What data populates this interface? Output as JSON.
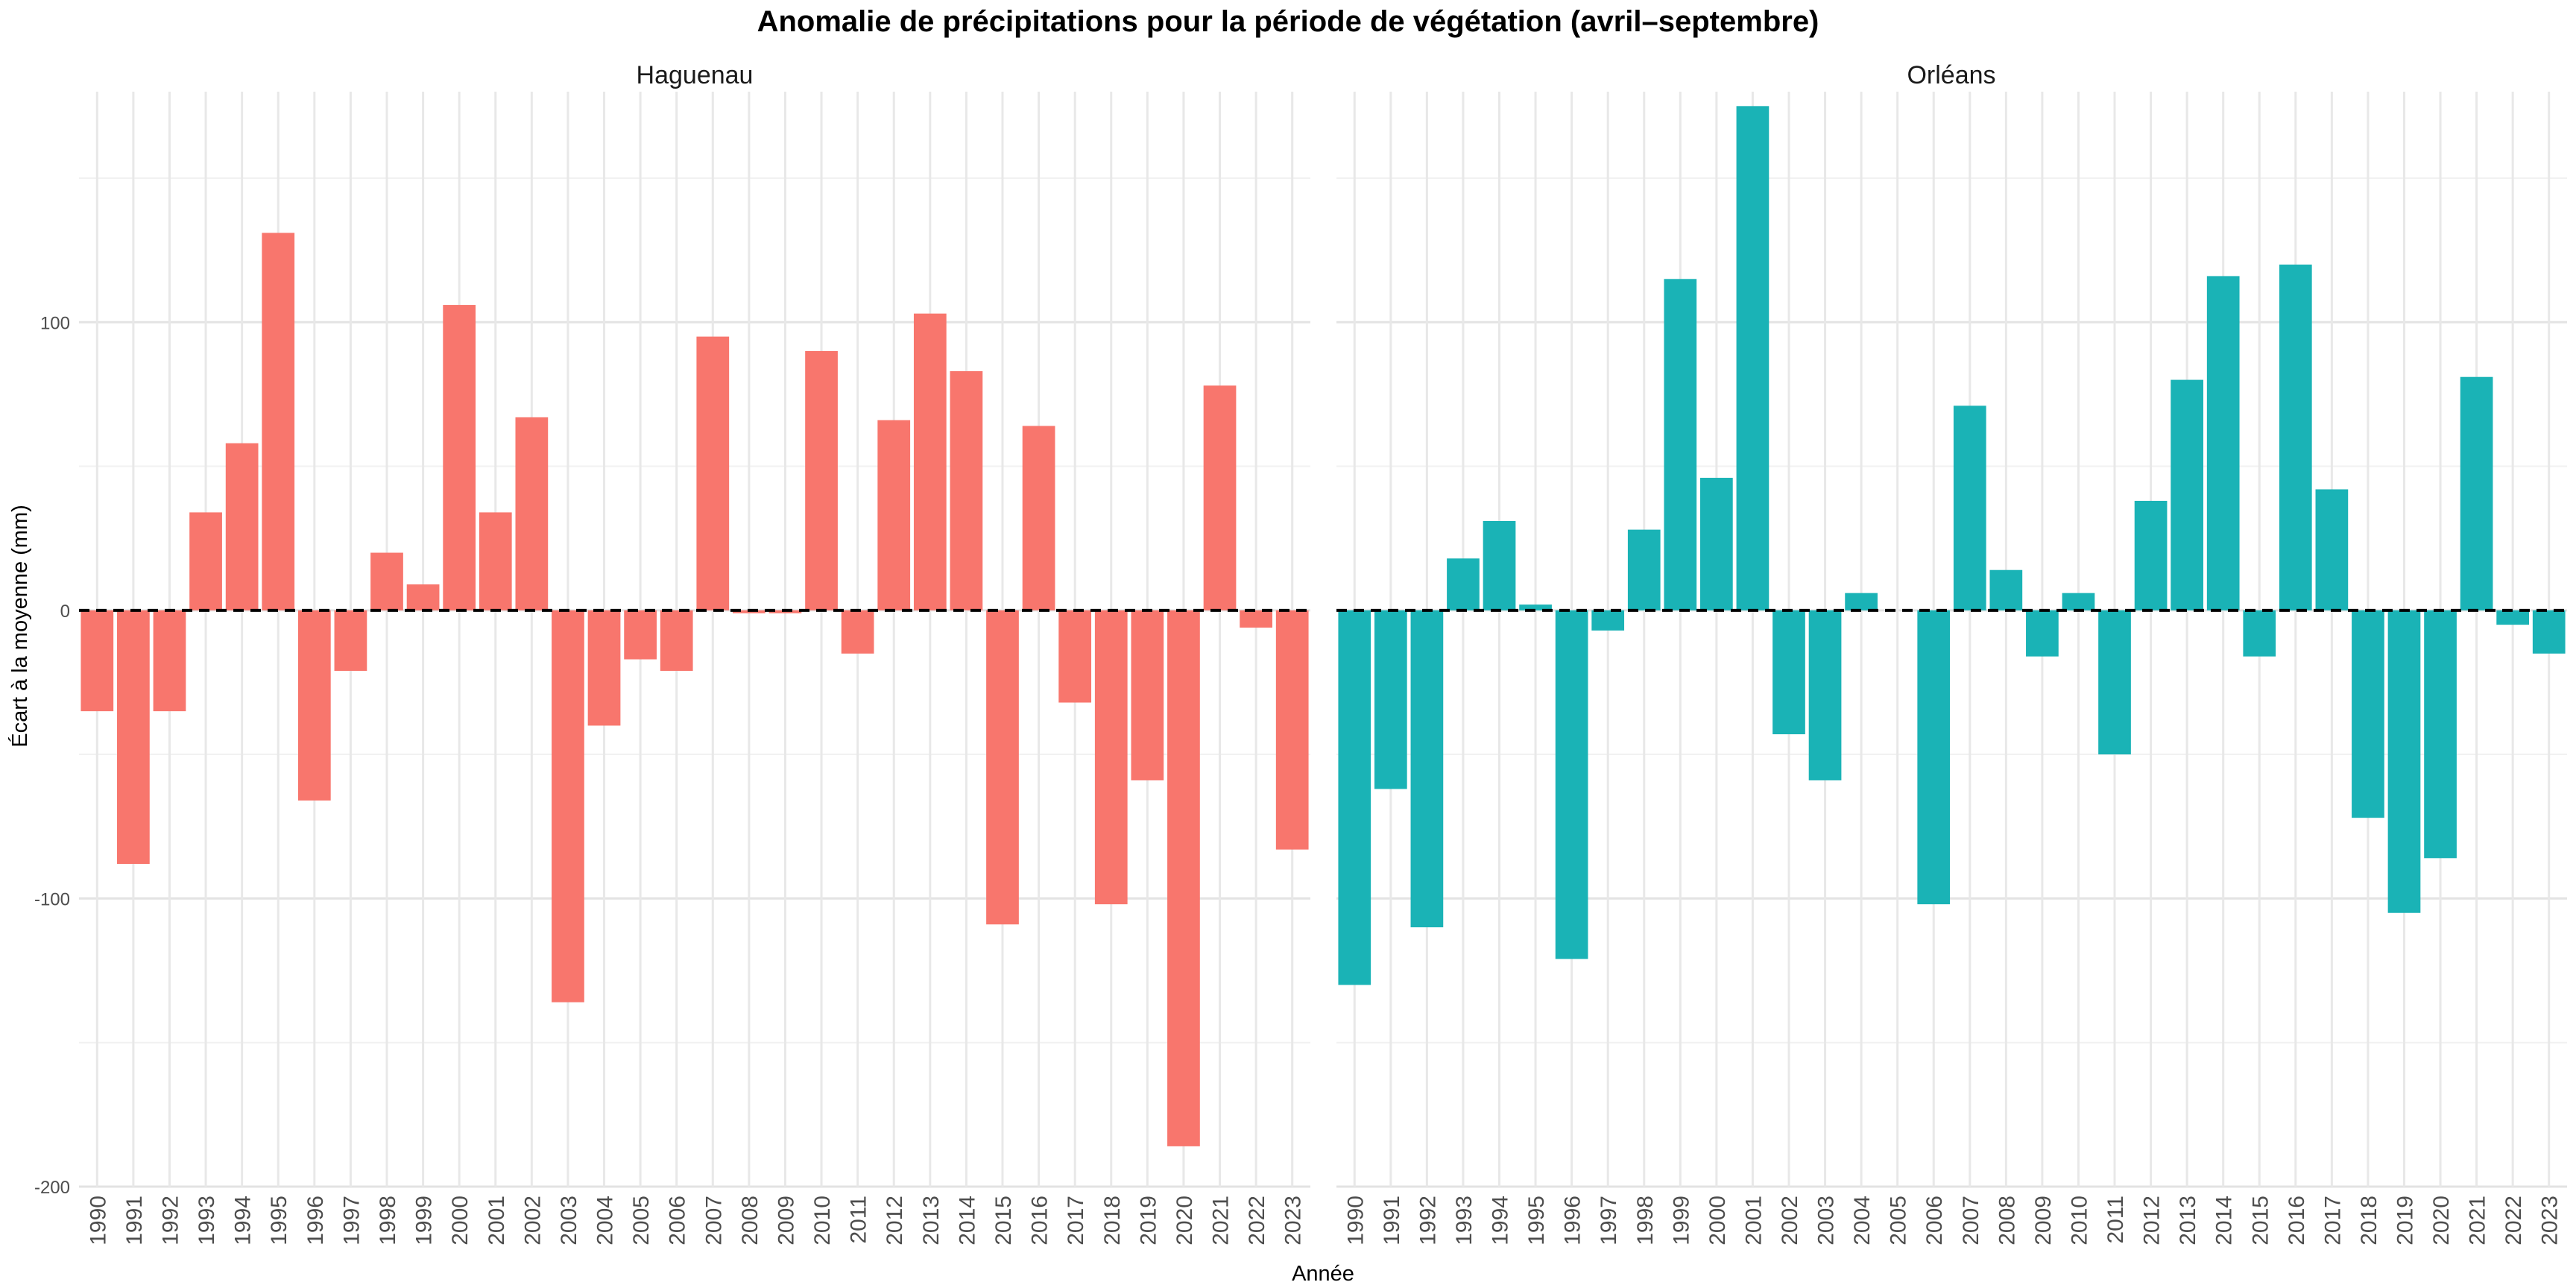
{
  "chart_data": {
    "type": "bar",
    "title": "Anomalie de précipitations pour la période de végétation (avril–septembre)",
    "xlabel": "Année",
    "ylabel": "Écart à la moyenne (mm)",
    "ylim": [
      -200,
      180
    ],
    "yticks": [
      -200,
      -100,
      0,
      100
    ],
    "grid": true,
    "reference_line": {
      "y": 0,
      "style": "dashed",
      "color": "#000000"
    },
    "categories": [
      "1990",
      "1991",
      "1992",
      "1993",
      "1994",
      "1995",
      "1996",
      "1997",
      "1998",
      "1999",
      "2000",
      "2001",
      "2002",
      "2003",
      "2004",
      "2005",
      "2006",
      "2007",
      "2008",
      "2009",
      "2010",
      "2011",
      "2012",
      "2013",
      "2014",
      "2015",
      "2016",
      "2017",
      "2018",
      "2019",
      "2020",
      "2021",
      "2022",
      "2023"
    ],
    "series": [
      {
        "name": "Haguenau",
        "color": "#F8766D",
        "values": [
          -35,
          -88,
          -35,
          34,
          58,
          131,
          -66,
          -21,
          20,
          9,
          106,
          34,
          67,
          -136,
          -40,
          -17,
          -21,
          95,
          -1,
          -1,
          90,
          -15,
          66,
          103,
          83,
          -109,
          64,
          -32,
          -102,
          -59,
          -186,
          78,
          -6,
          -83
        ]
      },
      {
        "name": "Orléans",
        "color": "#1AB3B6",
        "values": [
          -130,
          -62,
          -110,
          18,
          31,
          2,
          -121,
          -7,
          28,
          115,
          46,
          175,
          -43,
          -59,
          6,
          0,
          -102,
          71,
          14,
          -16,
          6,
          -50,
          38,
          80,
          116,
          -16,
          120,
          42,
          -72,
          -105,
          -86,
          81,
          -5,
          -15
        ]
      }
    ]
  }
}
